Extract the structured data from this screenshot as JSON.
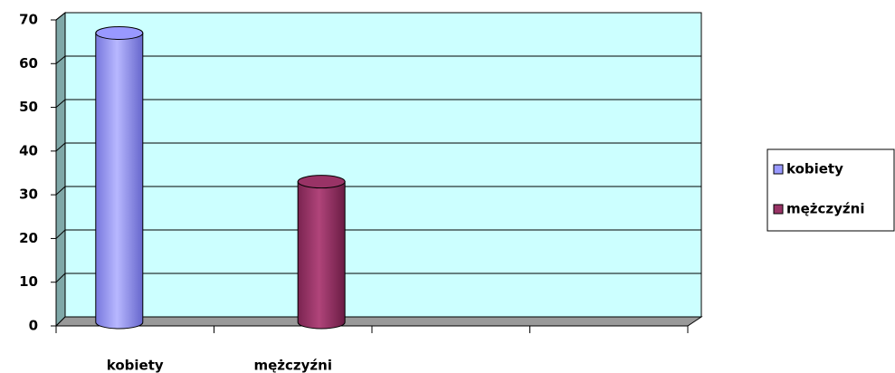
{
  "chart_data": {
    "type": "bar",
    "categories": [
      "kobiety",
      "mężczyźni",
      null,
      null
    ],
    "series": [
      {
        "name": "kobiety",
        "color": "#9999ff",
        "values": [
          67,
          null,
          null,
          null
        ]
      },
      {
        "name": "mężczyźni",
        "color": "#993366",
        "values": [
          null,
          33,
          null,
          null
        ]
      }
    ],
    "ylim": [
      0,
      70
    ],
    "yticks": [
      0,
      10,
      20,
      30,
      40,
      50,
      60,
      70
    ],
    "grid": true,
    "legend": "right"
  }
}
